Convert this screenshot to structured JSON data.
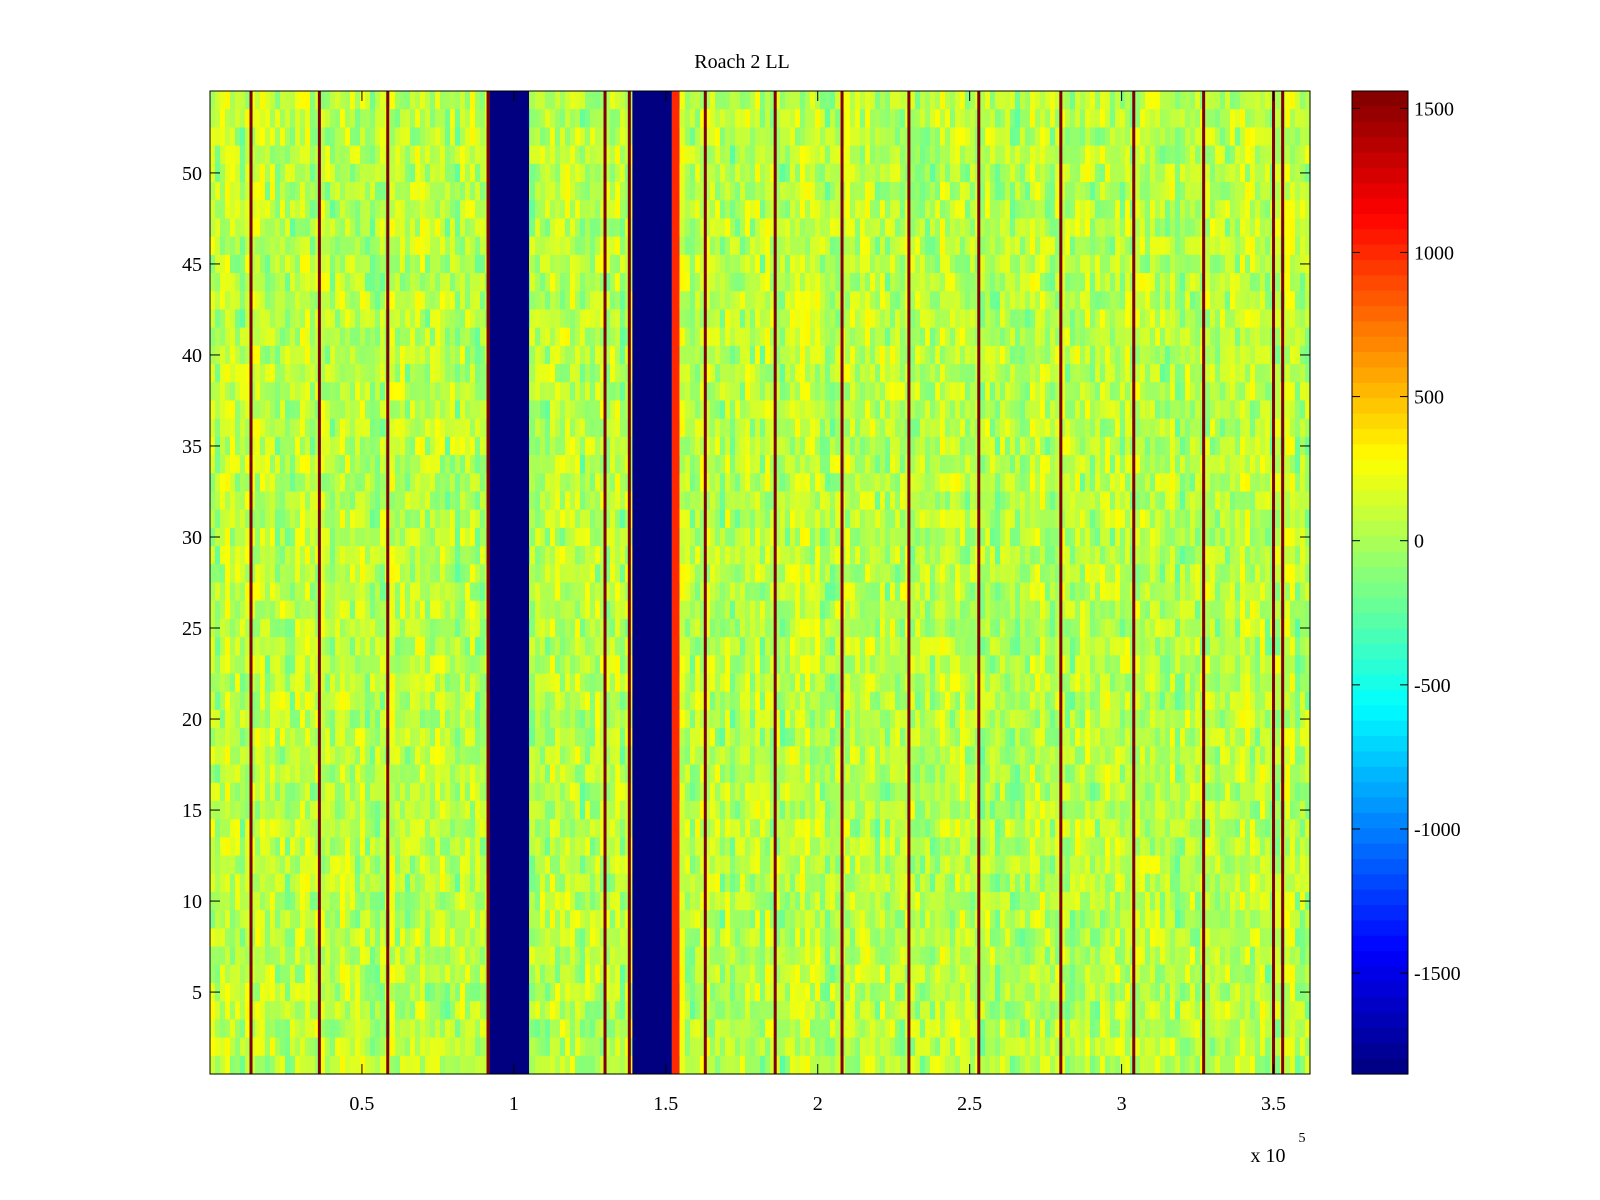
{
  "chart_data": {
    "type": "heatmap",
    "title": "Roach 2 LL",
    "xlabel": "",
    "ylabel": "",
    "x_exponent_label": "x 10",
    "x_exponent_power": "5",
    "xlim": [
      0.0,
      3.62
    ],
    "ylim": [
      0.5,
      54.5
    ],
    "x_ticks": [
      {
        "value": 0.5,
        "label": "0.5"
      },
      {
        "value": 1.0,
        "label": "1"
      },
      {
        "value": 1.5,
        "label": "1.5"
      },
      {
        "value": 2.0,
        "label": "2"
      },
      {
        "value": 2.5,
        "label": "2.5"
      },
      {
        "value": 3.0,
        "label": "3"
      },
      {
        "value": 3.5,
        "label": "3.5"
      }
    ],
    "y_ticks": [
      {
        "value": 5,
        "label": "5"
      },
      {
        "value": 10,
        "label": "10"
      },
      {
        "value": 15,
        "label": "15"
      },
      {
        "value": 20,
        "label": "20"
      },
      {
        "value": 25,
        "label": "25"
      },
      {
        "value": 30,
        "label": "30"
      },
      {
        "value": 35,
        "label": "35"
      },
      {
        "value": 40,
        "label": "40"
      },
      {
        "value": 45,
        "label": "45"
      },
      {
        "value": 50,
        "label": "50"
      }
    ],
    "colorbar": {
      "clim": [
        -1850,
        1560
      ],
      "colormap": "jet",
      "ticks": [
        {
          "value": 1500,
          "label": "1500"
        },
        {
          "value": 1000,
          "label": "1000"
        },
        {
          "value": 500,
          "label": "500"
        },
        {
          "value": 0,
          "label": "0"
        },
        {
          "value": -500,
          "label": "-500"
        },
        {
          "value": -1000,
          "label": "-1000"
        },
        {
          "value": -1500,
          "label": "-1500"
        }
      ]
    },
    "background_value_range": [
      -300,
      300
    ],
    "rows": 54,
    "vertical_bands": [
      {
        "x_start": 0.92,
        "x_end": 1.05,
        "value": -1850
      },
      {
        "x_start": 1.39,
        "x_end": 1.52,
        "value": -1850
      },
      {
        "x_start": 1.52,
        "x_end": 1.545,
        "value": 1000
      }
    ],
    "vertical_lines": [
      {
        "x": 0.135,
        "value": 1560
      },
      {
        "x": 0.36,
        "value": 1560
      },
      {
        "x": 0.585,
        "value": 1560
      },
      {
        "x": 0.915,
        "value": 1560
      },
      {
        "x": 1.3,
        "value": 1560
      },
      {
        "x": 1.38,
        "value": 1560
      },
      {
        "x": 1.63,
        "value": 1560
      },
      {
        "x": 1.86,
        "value": 1560
      },
      {
        "x": 2.08,
        "value": 1560
      },
      {
        "x": 2.3,
        "value": 1560
      },
      {
        "x": 2.53,
        "value": 1560
      },
      {
        "x": 2.8,
        "value": 1560
      },
      {
        "x": 3.04,
        "value": 1560
      },
      {
        "x": 3.27,
        "value": 1560
      },
      {
        "x": 3.5,
        "value": 1560
      },
      {
        "x": 3.53,
        "value": 1560
      }
    ]
  }
}
